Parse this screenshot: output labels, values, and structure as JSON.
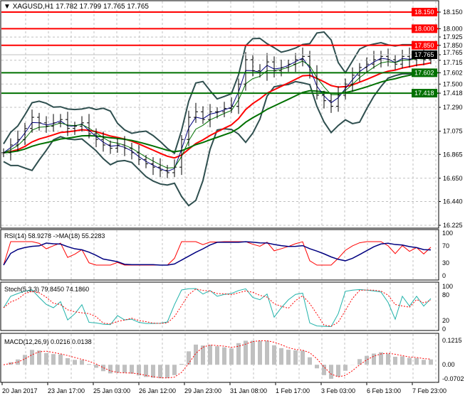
{
  "header": {
    "symbol": "XAGUSD,H1",
    "ohlc": "17.782 17.799 17.765 17.765"
  },
  "colors": {
    "bg": "#ffffff",
    "grid": "#c0c0c0",
    "red": "#ff0000",
    "green": "#007000",
    "band": "#2f4f4f",
    "rsi": "#ff0000",
    "rsi_ma": "#000080",
    "stoch_main": "#20b2aa",
    "stoch_signal": "#ff0000",
    "macd_hist": "#c0c0c0",
    "macd_signal": "#ff0000"
  },
  "chart_data": [
    {
      "type": "line",
      "pane": "price",
      "title": "XAGUSD,H1",
      "ylim": [
        16.225,
        18.15
      ],
      "y_ticks": [
        "18.150",
        "18.000",
        "17.925",
        "17.850",
        "17.765",
        "17.715",
        "17.602",
        "17.500",
        "17.418",
        "17.290",
        "17.075",
        "16.865",
        "16.650",
        "16.440",
        "16.225"
      ],
      "levels": [
        {
          "value": 18.15,
          "label": "18.150",
          "color": "#ff0000"
        },
        {
          "value": 18.0,
          "label": "18.000",
          "color": "#ff0000"
        },
        {
          "value": 17.85,
          "label": "17.850",
          "color": "#ff0000"
        },
        {
          "value": 17.602,
          "label": "17.602",
          "color": "#007000"
        },
        {
          "value": 17.418,
          "label": "17.418",
          "color": "#007000"
        }
      ],
      "current_price": {
        "value": 17.765,
        "label": "17.765"
      },
      "closes": [
        16.88,
        16.95,
        17.0,
        17.1,
        17.2,
        17.15,
        17.12,
        17.15,
        17.18,
        17.1,
        17.12,
        17.15,
        17.05,
        17.0,
        16.95,
        16.92,
        16.95,
        16.92,
        16.88,
        16.82,
        16.78,
        16.75,
        16.72,
        16.7,
        16.75,
        17.0,
        17.2,
        17.25,
        17.18,
        17.25,
        17.25,
        17.28,
        17.3,
        17.5,
        17.72,
        17.62,
        17.6,
        17.7,
        17.62,
        17.65,
        17.68,
        17.72,
        17.75,
        17.6,
        17.4,
        17.35,
        17.3,
        17.4,
        17.5,
        17.58,
        17.65,
        17.68,
        17.72,
        17.75,
        17.72,
        17.68,
        17.75,
        17.72,
        17.75,
        17.72,
        17.765
      ],
      "x_ticks": [
        "20 Jan 2017",
        "23 Jan 17:00",
        "25 Jan 03:00",
        "26 Jan 12:00",
        "29 Jan 23:00",
        "31 Jan 08:00",
        "1 Feb 17:00",
        "3 Feb 03:00",
        "6 Feb 13:00",
        "7 Feb 23:00"
      ]
    },
    {
      "type": "line",
      "pane": "rsi",
      "label": "RSI(14) 58.9278  ->MA(18) 55.2283",
      "ylim": [
        0,
        100
      ],
      "y_ticks": [
        "100",
        "70",
        "30",
        "0"
      ]
    },
    {
      "type": "line",
      "pane": "stoch",
      "label": "Stoch(5,3,3) 79.8450 74.1860",
      "ylim": [
        0,
        100
      ],
      "y_ticks": [
        "100",
        "80",
        "20",
        "0"
      ]
    },
    {
      "type": "bar",
      "pane": "macd",
      "label": "MACD(12,26,9) 0.0216 0.0138",
      "ylim": [
        -0.0702,
        0.1215
      ],
      "y_ticks": [
        "0.1215",
        "0.00",
        "-0.0702"
      ]
    }
  ]
}
